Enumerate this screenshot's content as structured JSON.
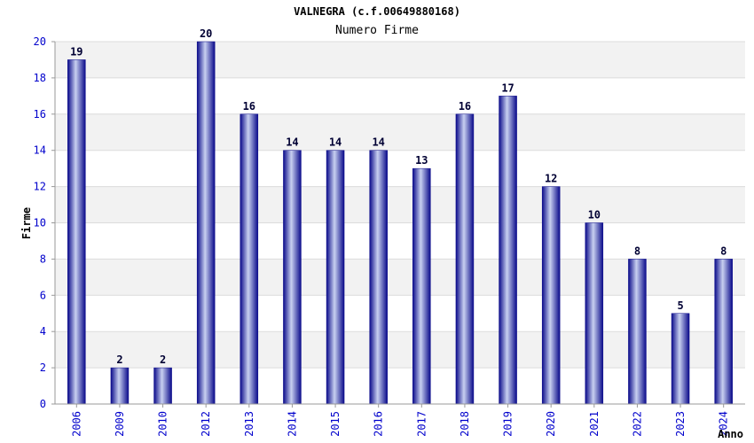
{
  "chart_data": {
    "type": "bar",
    "title": "VALNEGRA (c.f.00649880168)",
    "subtitle": "Numero Firme",
    "xlabel": "Anno",
    "ylabel": "Firme",
    "categories": [
      "2006",
      "2009",
      "2010",
      "2012",
      "2013",
      "2014",
      "2015",
      "2016",
      "2017",
      "2018",
      "2019",
      "2020",
      "2021",
      "2022",
      "2023",
      "2024"
    ],
    "values": [
      19,
      2,
      2,
      20,
      16,
      14,
      14,
      14,
      13,
      16,
      17,
      12,
      10,
      8,
      5,
      8
    ],
    "ylim": [
      0,
      20
    ],
    "yticks": [
      0,
      2,
      4,
      6,
      8,
      10,
      12,
      14,
      16,
      18,
      20
    ],
    "grid": true,
    "legend": "none",
    "colors": {
      "bar_dark": "#0a0a8a",
      "bar_light": "#c8d0f0",
      "band": "#f2f2f2",
      "tick_text": "#0000cc"
    }
  }
}
